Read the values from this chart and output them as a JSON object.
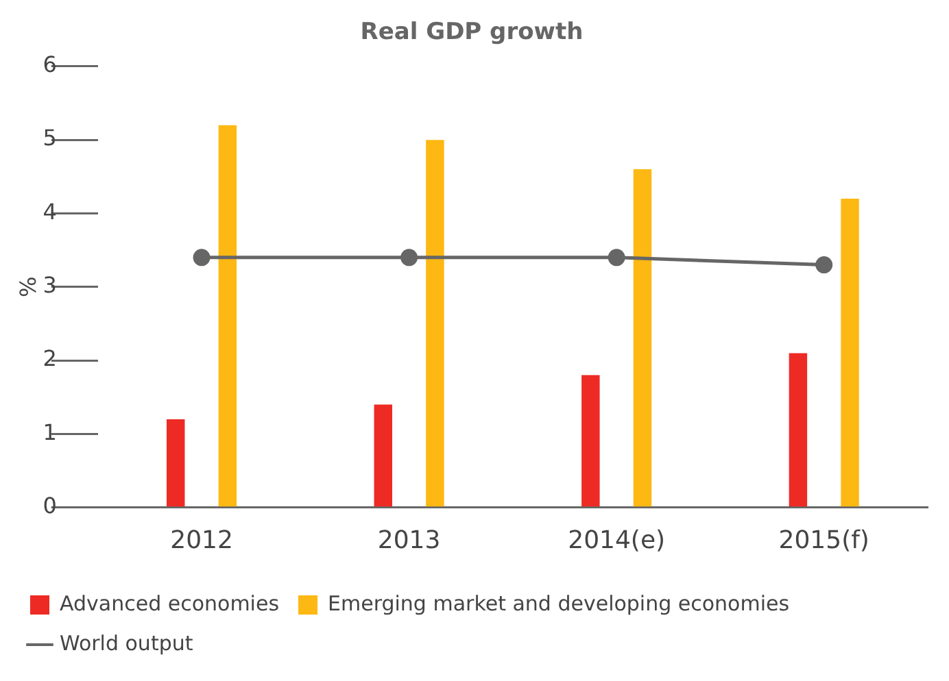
{
  "chart_data": {
    "type": "bar",
    "title": "Real GDP growth",
    "ylabel": "%",
    "categories": [
      "2012",
      "2013",
      "2014(e)",
      "2015(f)"
    ],
    "series": [
      {
        "name": "Advanced economies",
        "color": "#ee2a24",
        "values": [
          1.2,
          1.4,
          1.8,
          2.1
        ]
      },
      {
        "name": "Emerging market and developing economies",
        "color": "#fdb813",
        "values": [
          5.2,
          5.0,
          4.6,
          4.2
        ]
      },
      {
        "name": "World output",
        "type": "line",
        "color": "#666666",
        "values": [
          3.4,
          3.4,
          3.4,
          3.3
        ]
      }
    ],
    "ylim": [
      0,
      6
    ],
    "yticks": [
      0,
      1,
      2,
      3,
      4,
      5,
      6
    ],
    "grid": false,
    "legend": "bottom",
    "marker": "circle"
  }
}
